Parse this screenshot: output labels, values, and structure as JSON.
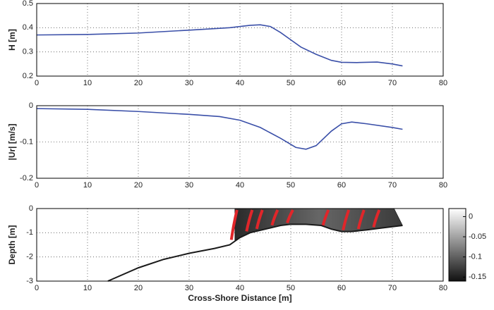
{
  "chart_data": [
    {
      "type": "line",
      "ylabel": "H [m]",
      "grid": true,
      "xlim": [
        0,
        80
      ],
      "xticks": [
        0,
        10,
        20,
        30,
        40,
        50,
        60,
        70,
        80
      ],
      "ylim": [
        0.2,
        0.5
      ],
      "yticks": [
        0.2,
        0.3,
        0.4,
        0.5
      ],
      "x": [
        0,
        10,
        20,
        30,
        38,
        42,
        44,
        46,
        48,
        50,
        52,
        55,
        58,
        60,
        63,
        67,
        70,
        72
      ],
      "series": [
        {
          "color": "#3a4fa8",
          "values": [
            0.37,
            0.372,
            0.378,
            0.39,
            0.4,
            0.41,
            0.412,
            0.405,
            0.38,
            0.35,
            0.32,
            0.29,
            0.265,
            0.257,
            0.256,
            0.258,
            0.25,
            0.242
          ]
        }
      ]
    },
    {
      "type": "line",
      "ylabel": "|Ur| [m/s]",
      "grid": true,
      "xlim": [
        0,
        80
      ],
      "xticks": [
        0,
        10,
        20,
        30,
        40,
        50,
        60,
        70,
        80
      ],
      "ylim": [
        -0.2,
        0
      ],
      "yticks": [
        -0.2,
        -0.1,
        0
      ],
      "x": [
        0,
        10,
        20,
        30,
        36,
        40,
        44,
        48,
        51,
        53,
        55,
        58,
        60,
        62,
        65,
        70,
        72
      ],
      "series": [
        {
          "color": "#3a4fa8",
          "values": [
            -0.008,
            -0.01,
            -0.016,
            -0.024,
            -0.03,
            -0.04,
            -0.06,
            -0.09,
            -0.115,
            -0.12,
            -0.11,
            -0.07,
            -0.05,
            -0.045,
            -0.05,
            -0.06,
            -0.065
          ]
        }
      ]
    },
    {
      "type": "section",
      "ylabel": "Depth [m]",
      "xlabel": "Cross-Shore Distance [m]",
      "grid": true,
      "xlim": [
        0,
        80
      ],
      "xticks": [
        0,
        10,
        20,
        30,
        40,
        50,
        60,
        70,
        80
      ],
      "ylim": [
        -3,
        0
      ],
      "yticks": [
        -3,
        -2,
        -1,
        0
      ],
      "x": [
        14,
        20,
        25,
        30,
        35,
        38,
        40,
        42,
        45,
        48,
        50,
        53,
        56,
        58,
        60,
        62,
        65,
        68,
        72
      ],
      "series": [
        {
          "color": "#1a1a1a",
          "values": [
            -3,
            -2.45,
            -2.1,
            -1.85,
            -1.65,
            -1.5,
            -1.2,
            -1.0,
            -0.85,
            -0.7,
            -0.65,
            -0.65,
            -0.7,
            -0.85,
            -0.95,
            -0.95,
            -0.88,
            -0.8,
            -0.7
          ]
        }
      ],
      "profile_x": [
        39,
        42,
        44,
        47,
        50,
        57,
        61,
        64,
        67
      ],
      "profile_color": "#e0262a",
      "colorbar": {
        "lim": [
          -0.16,
          0.02
        ],
        "ticks": [
          -0.15,
          -0.1,
          -0.05,
          0
        ]
      }
    }
  ]
}
